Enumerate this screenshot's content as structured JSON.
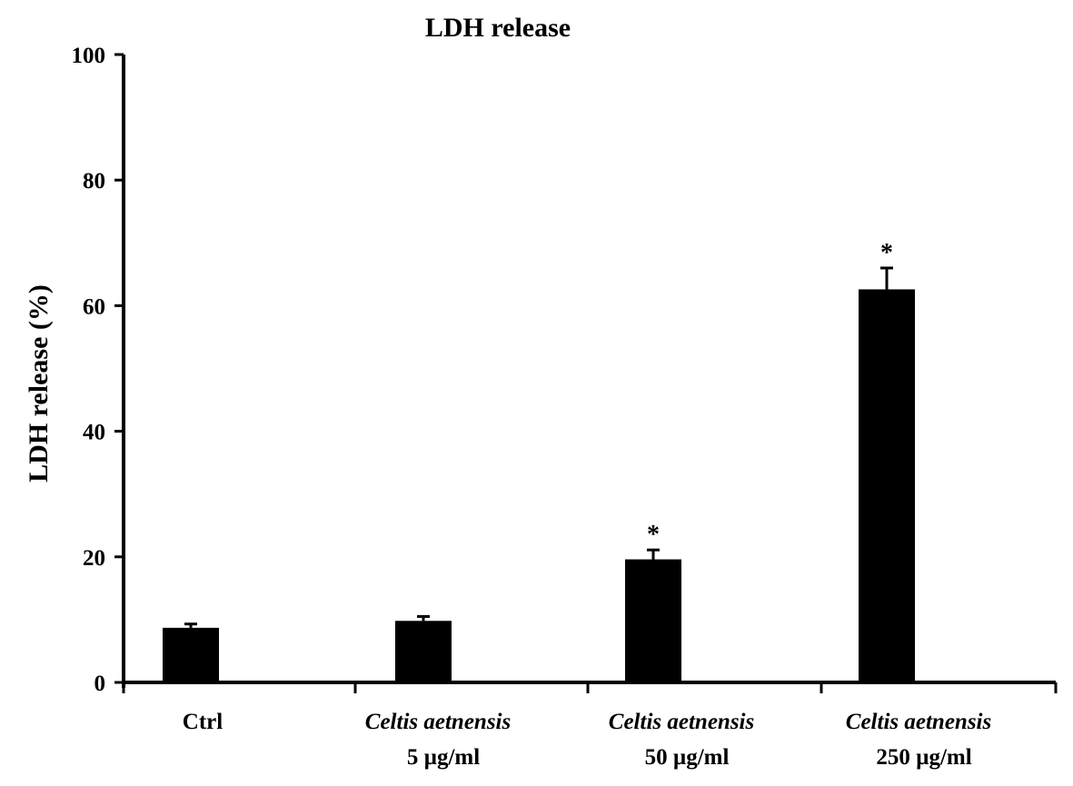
{
  "chart_data": {
    "type": "bar",
    "title": "LDH release",
    "xlabel": "",
    "ylabel": "LDH release (%)",
    "ylim": [
      0,
      100
    ],
    "yticks": [
      0,
      20,
      40,
      60,
      80,
      100
    ],
    "grid": false,
    "legend": "none",
    "categories": [
      {
        "line1": "Ctrl",
        "line1_italic": false,
        "line2": ""
      },
      {
        "line1": "Celtis aetnensis",
        "line1_italic": true,
        "line2": "5 µg/ml"
      },
      {
        "line1": "Celtis aetnensis",
        "line1_italic": true,
        "line2": "50 µg/ml"
      },
      {
        "line1": "Celtis aetnensis",
        "line1_italic": true,
        "line2": "250 µg/ml"
      }
    ],
    "values": [
      8.7,
      9.8,
      19.6,
      62.6
    ],
    "errors": [
      0.6,
      0.7,
      1.5,
      3.4
    ],
    "significance": [
      "",
      "",
      "*",
      "*"
    ],
    "bar_color": "#000000"
  }
}
